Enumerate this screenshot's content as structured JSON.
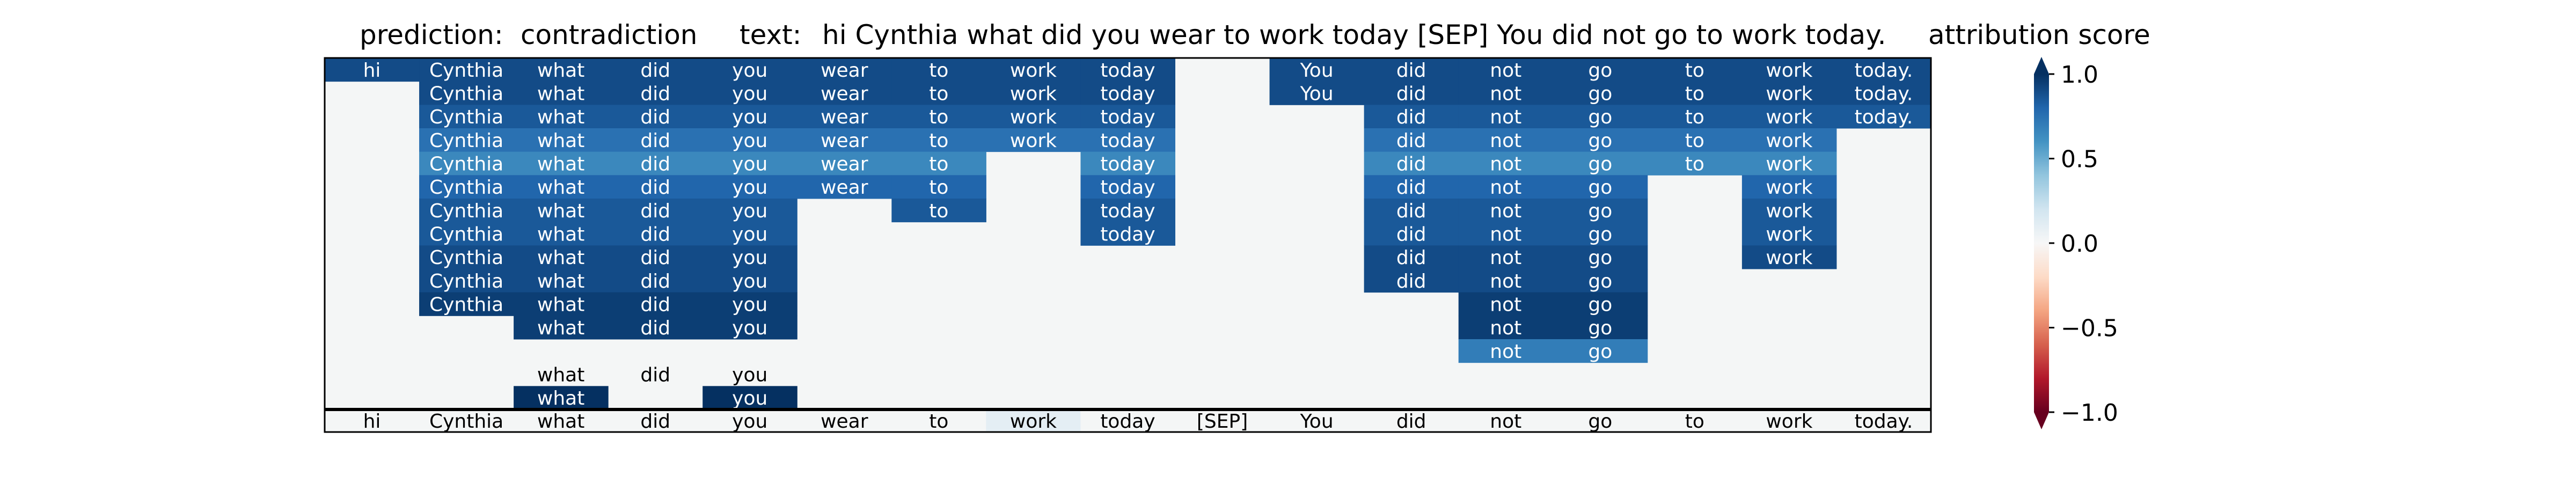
{
  "header": {
    "prediction_label": "prediction:",
    "prediction_value": "contradiction",
    "text_label": "text:",
    "text_value": "hi Cynthia what did you wear to work today [SEP] You did not go to work today.",
    "colorbar_title": "attribution score"
  },
  "colorbar": {
    "ticks": [
      "1.0",
      "0.5",
      "0.0",
      "−0.5",
      "−1.0"
    ],
    "tick_values": [
      1.0,
      0.5,
      0.0,
      -0.5,
      -1.0
    ],
    "range": [
      -1.0,
      1.0
    ],
    "colormap": "RdBu",
    "colors": [
      "#67001f",
      "#b2182b",
      "#d6604d",
      "#f4a582",
      "#fddbc7",
      "#f7f7f7",
      "#d1e5f0",
      "#92c5de",
      "#4393c3",
      "#2166ac",
      "#053061"
    ]
  },
  "chart_data": {
    "type": "heatmap",
    "title": "attribution score",
    "tokens": [
      "hi",
      "Cynthia",
      "what",
      "did",
      "you",
      "wear",
      "to",
      "work",
      "today",
      "[SEP]",
      "You",
      "did",
      "not",
      "go",
      "to",
      "work",
      "today."
    ],
    "bottom_row_values": [
      0,
      0,
      0,
      0,
      0,
      0,
      0,
      0.1,
      0,
      0,
      0,
      0,
      0,
      0,
      0,
      0,
      0
    ],
    "rows": [
      [
        0.9,
        0.9,
        0.9,
        0.9,
        0.9,
        0.9,
        0.9,
        0.9,
        0.9,
        null,
        0.9,
        0.9,
        0.9,
        0.9,
        0.9,
        0.9,
        0.9
      ],
      [
        null,
        0.9,
        0.9,
        0.9,
        0.9,
        0.9,
        0.9,
        0.9,
        0.9,
        null,
        0.9,
        0.9,
        0.9,
        0.9,
        0.9,
        0.9,
        0.9
      ],
      [
        null,
        0.85,
        0.85,
        0.85,
        0.85,
        0.85,
        0.85,
        0.85,
        0.85,
        null,
        null,
        0.85,
        0.85,
        0.85,
        0.85,
        0.85,
        0.85
      ],
      [
        null,
        0.75,
        0.75,
        0.75,
        0.75,
        0.75,
        0.75,
        0.75,
        0.75,
        null,
        null,
        0.75,
        0.75,
        0.75,
        0.75,
        0.75,
        null
      ],
      [
        null,
        0.65,
        0.65,
        0.65,
        0.65,
        0.65,
        0.65,
        null,
        0.65,
        null,
        null,
        0.65,
        0.65,
        0.65,
        0.65,
        0.65,
        null
      ],
      [
        null,
        0.8,
        0.8,
        0.8,
        0.8,
        0.8,
        0.8,
        null,
        0.8,
        null,
        null,
        0.8,
        0.8,
        0.8,
        null,
        0.8,
        null
      ],
      [
        null,
        0.85,
        0.85,
        0.85,
        0.85,
        null,
        0.85,
        null,
        0.85,
        null,
        null,
        0.85,
        0.85,
        0.85,
        null,
        0.85,
        null
      ],
      [
        null,
        0.85,
        0.85,
        0.85,
        0.85,
        null,
        null,
        null,
        0.85,
        null,
        null,
        0.85,
        0.85,
        0.85,
        null,
        0.85,
        null
      ],
      [
        null,
        0.9,
        0.9,
        0.9,
        0.9,
        null,
        null,
        null,
        null,
        null,
        null,
        0.9,
        0.9,
        0.9,
        null,
        0.9,
        null
      ],
      [
        null,
        0.9,
        0.9,
        0.9,
        0.9,
        null,
        null,
        null,
        null,
        null,
        null,
        0.9,
        0.9,
        0.9,
        null,
        null,
        null
      ],
      [
        null,
        0.95,
        0.95,
        0.95,
        0.95,
        null,
        null,
        null,
        null,
        null,
        null,
        null,
        0.95,
        0.95,
        null,
        null,
        null
      ],
      [
        null,
        null,
        0.95,
        0.95,
        0.95,
        null,
        null,
        null,
        null,
        null,
        null,
        null,
        0.95,
        0.95,
        null,
        null,
        null
      ],
      [
        null,
        null,
        null,
        null,
        null,
        null,
        null,
        null,
        null,
        null,
        null,
        null,
        0.7,
        0.7,
        null,
        null,
        null
      ],
      [
        null,
        null,
        0,
        0,
        0,
        null,
        null,
        null,
        null,
        null,
        null,
        null,
        null,
        null,
        null,
        null,
        null
      ],
      [
        null,
        null,
        1.0,
        null,
        1.0,
        null,
        null,
        null,
        null,
        null,
        null,
        null,
        null,
        null,
        null,
        null,
        null
      ]
    ]
  }
}
